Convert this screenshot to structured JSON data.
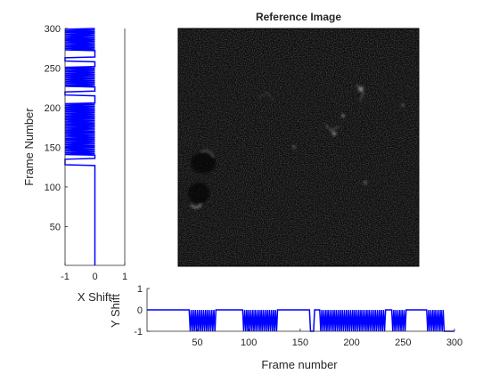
{
  "chart_data": [
    {
      "type": "line",
      "orientation": "vertical",
      "title": "",
      "xlabel": "X Shift",
      "ylabel": "Frame Number",
      "xlim": [
        -1,
        1
      ],
      "ylim": [
        1,
        300
      ],
      "xticks": [
        "-1",
        "0",
        "1"
      ],
      "yticks": [
        "50",
        "100",
        "150",
        "200",
        "250",
        "300"
      ],
      "grid": false,
      "series": [
        {
          "color": "#0000ff",
          "shift_sequence": [
            {
              "from": 1,
              "to": 127,
              "value": 0
            },
            {
              "from": 128,
              "to": 135,
              "value": -1
            },
            {
              "from": 136,
              "to": 140,
              "value": 0
            },
            {
              "from": 141,
              "to": 205,
              "value": -1,
              "alternating": true
            },
            {
              "from": 206,
              "to": 215,
              "value": 0
            },
            {
              "from": 216,
              "to": 220,
              "value": -1
            },
            {
              "from": 221,
              "to": 226,
              "value": 0
            },
            {
              "from": 227,
              "to": 252,
              "value": -1,
              "alternating": true
            },
            {
              "from": 253,
              "to": 258,
              "value": 0
            },
            {
              "from": 259,
              "to": 263,
              "value": -1
            },
            {
              "from": 264,
              "to": 272,
              "value": 0
            },
            {
              "from": 273,
              "to": 300,
              "value": -1,
              "alternating": true
            }
          ]
        }
      ]
    },
    {
      "type": "line",
      "title": "",
      "xlabel": "Frame number",
      "ylabel": "Y Shift",
      "xlim": [
        1,
        300
      ],
      "ylim": [
        -1,
        1
      ],
      "xticks": [
        "50",
        "100",
        "150",
        "200",
        "250",
        "300"
      ],
      "yticks": [
        "-1",
        "0",
        "1"
      ],
      "grid": false,
      "series": [
        {
          "color": "#0000ff",
          "shift_sequence": [
            {
              "from": 1,
              "to": 42,
              "value": 0
            },
            {
              "from": 43,
              "to": 68,
              "value": -1,
              "alternating": true
            },
            {
              "from": 69,
              "to": 94,
              "value": 0
            },
            {
              "from": 95,
              "to": 128,
              "value": -1,
              "alternating": true
            },
            {
              "from": 129,
              "to": 159,
              "value": 0
            },
            {
              "from": 160,
              "to": 163,
              "value": -1
            },
            {
              "from": 164,
              "to": 169,
              "value": 0
            },
            {
              "from": 170,
              "to": 232,
              "value": -1,
              "alternating": true
            },
            {
              "from": 233,
              "to": 239,
              "value": 0
            },
            {
              "from": 240,
              "to": 252,
              "value": -1,
              "alternating": true
            },
            {
              "from": 253,
              "to": 273,
              "value": 0
            },
            {
              "from": 274,
              "to": 290,
              "value": -1,
              "alternating": true
            },
            {
              "from": 291,
              "to": 300,
              "value": -1
            }
          ]
        }
      ]
    }
  ],
  "image_panel": {
    "title": "Reference Image",
    "background": "#0d0d0d"
  }
}
